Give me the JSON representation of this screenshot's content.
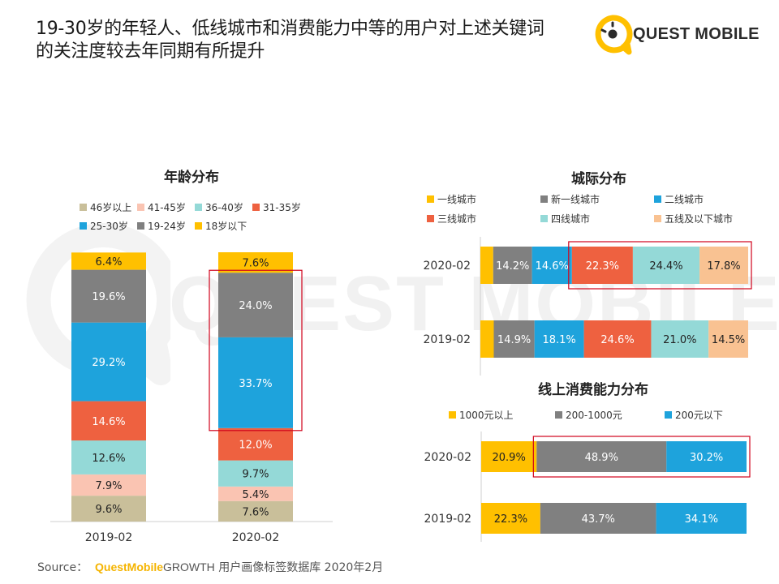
{
  "title": {
    "line1": "19-30岁的年轻人、低线城市和消费能力中等的用户对上述关键词",
    "line2": "的关注度较去年同期有所提升"
  },
  "logo": {
    "text": "QUEST MOBILE",
    "watermark": "QUEST MOBILE"
  },
  "source": {
    "prefix": "Source：",
    "brand": "QuestMobile",
    "rest_a": "GROWTH",
    "rest_b": " 用户画像标签数据库 2020年2月"
  },
  "colors": {
    "yellow": "#ffc000",
    "gray": "#808080",
    "blue": "#1ea3dc",
    "red": "#ee6140",
    "teal": "#94d9d7",
    "salmon": "#fac4b2",
    "olive": "#c9bf9a",
    "peach": "#f9c292",
    "highlight": "#d0021b"
  },
  "chart_data": [
    {
      "type": "bar",
      "stacked": true,
      "orientation": "vertical",
      "title": "年龄分布",
      "categories": [
        "2019-02",
        "2020-02"
      ],
      "series": [
        {
          "name": "46岁以上",
          "color": "#c9bf9a",
          "values": [
            9.6,
            7.6
          ]
        },
        {
          "name": "41-45岁",
          "color": "#fac4b2",
          "values": [
            7.9,
            5.4
          ]
        },
        {
          "name": "36-40岁",
          "color": "#94d9d7",
          "values": [
            12.6,
            9.7
          ]
        },
        {
          "name": "31-35岁",
          "color": "#ee6140",
          "values": [
            14.6,
            12.0
          ]
        },
        {
          "name": "25-30岁",
          "color": "#1ea3dc",
          "values": [
            29.2,
            33.7
          ]
        },
        {
          "name": "19-24岁",
          "color": "#808080",
          "values": [
            19.6,
            24.0
          ]
        },
        {
          "name": "18岁以下",
          "color": "#ffc000",
          "values": [
            6.4,
            7.6
          ]
        }
      ],
      "value_suffix": "%",
      "highlight": {
        "category": "2020-02",
        "series": [
          "25-30岁",
          "19-24岁"
        ]
      }
    },
    {
      "type": "bar",
      "stacked": true,
      "orientation": "horizontal",
      "title": "城际分布",
      "categories": [
        "2020-02",
        "2019-02"
      ],
      "series": [
        {
          "name": "一线城市",
          "color": "#ffc000",
          "values": [
            4.7,
            4.9
          ],
          "show_label": false
        },
        {
          "name": "新一线城市",
          "color": "#808080",
          "values": [
            14.2,
            14.9
          ]
        },
        {
          "name": "二线城市",
          "color": "#1ea3dc",
          "values": [
            14.6,
            18.1
          ]
        },
        {
          "name": "三线城市",
          "color": "#ee6140",
          "values": [
            22.3,
            24.6
          ]
        },
        {
          "name": "四线城市",
          "color": "#94d9d7",
          "values": [
            24.4,
            21.0
          ]
        },
        {
          "name": "五线及以下城市",
          "color": "#f9c292",
          "values": [
            17.8,
            14.5
          ]
        }
      ],
      "value_suffix": "%",
      "highlight": {
        "category": "2020-02",
        "series": [
          "三线城市",
          "四线城市",
          "五线及以下城市"
        ]
      }
    },
    {
      "type": "bar",
      "stacked": true,
      "orientation": "horizontal",
      "title": "线上消费能力分布",
      "categories": [
        "2020-02",
        "2019-02"
      ],
      "series": [
        {
          "name": "1000元以上",
          "color": "#ffc000",
          "values": [
            20.9,
            22.3
          ]
        },
        {
          "name": "200-1000元",
          "color": "#808080",
          "values": [
            48.9,
            43.7
          ]
        },
        {
          "name": "200元以下",
          "color": "#1ea3dc",
          "values": [
            30.2,
            34.1
          ]
        }
      ],
      "value_suffix": "%",
      "highlight": {
        "category": "2020-02",
        "series": [
          "200-1000元",
          "200元以下"
        ]
      }
    }
  ]
}
